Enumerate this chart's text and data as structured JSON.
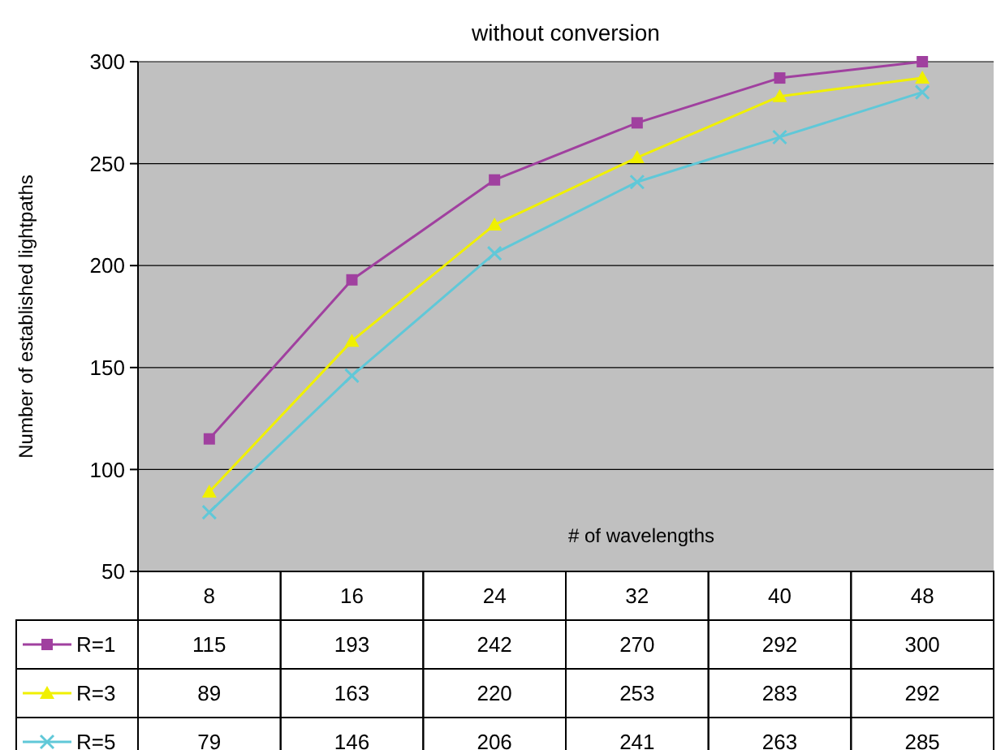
{
  "chart_data": {
    "type": "line",
    "title": "without conversion",
    "xlabel": "# of wavelengths",
    "ylabel": "Number of established lightpaths",
    "categories": [
      "8",
      "16",
      "24",
      "32",
      "40",
      "48"
    ],
    "series": [
      {
        "name": "R=1",
        "color": "#a0409f",
        "marker": "square",
        "values": [
          115,
          193,
          242,
          270,
          292,
          300
        ]
      },
      {
        "name": "R=3",
        "color": "#f0f000",
        "marker": "triangle",
        "values": [
          89,
          163,
          220,
          253,
          283,
          292
        ]
      },
      {
        "name": "R=5",
        "color": "#60c8d8",
        "marker": "cross",
        "values": [
          79,
          146,
          206,
          241,
          263,
          285
        ]
      }
    ],
    "ylim": [
      50,
      300
    ],
    "yticks": [
      50,
      100,
      150,
      200,
      250,
      300
    ],
    "grid": "y",
    "legend": "bottom",
    "data_labels": true
  }
}
